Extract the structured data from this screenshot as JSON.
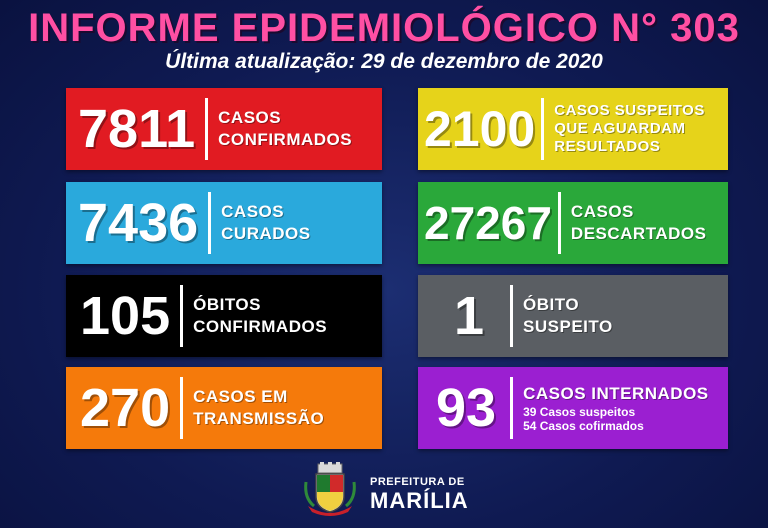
{
  "header": {
    "title": "INFORME EPIDEMIOLÓGICO N° 303",
    "subtitle": "Última atualização: 29 de dezembro de 2020"
  },
  "cards": [
    {
      "value": "7811",
      "label": "CASOS\nCONFIRMADOS",
      "color": "#e11b22"
    },
    {
      "value": "2100",
      "label": "CASOS SUSPEITOS\nQUE AGUARDAM\nRESULTADOS",
      "color": "#e6d31a"
    },
    {
      "value": "7436",
      "label": "CASOS\nCURADOS",
      "color": "#2aa9dc"
    },
    {
      "value": "27267",
      "label": "CASOS\nDESCARTADOS",
      "color": "#2aa83a"
    },
    {
      "value": "105",
      "label": "ÓBITOS\nCONFIRMADOS",
      "color": "#000000"
    },
    {
      "value": "1",
      "label": "ÓBITO\nSUSPEITO",
      "color": "#5a5e63"
    },
    {
      "value": "270",
      "label": "CASOS EM\nTRANSMISSÃO",
      "color": "#f57a0b"
    },
    {
      "value": "93",
      "label": "CASOS INTERNADOS",
      "color": "#9b1fd1",
      "details": [
        "39 Casos suspeitos",
        "54 Casos cofirmados"
      ]
    }
  ],
  "footer": {
    "prefeitura": "PREFEITURA DE",
    "city": "MARÍLIA",
    "logo_icon": "city-coat-of-arms-icon"
  }
}
